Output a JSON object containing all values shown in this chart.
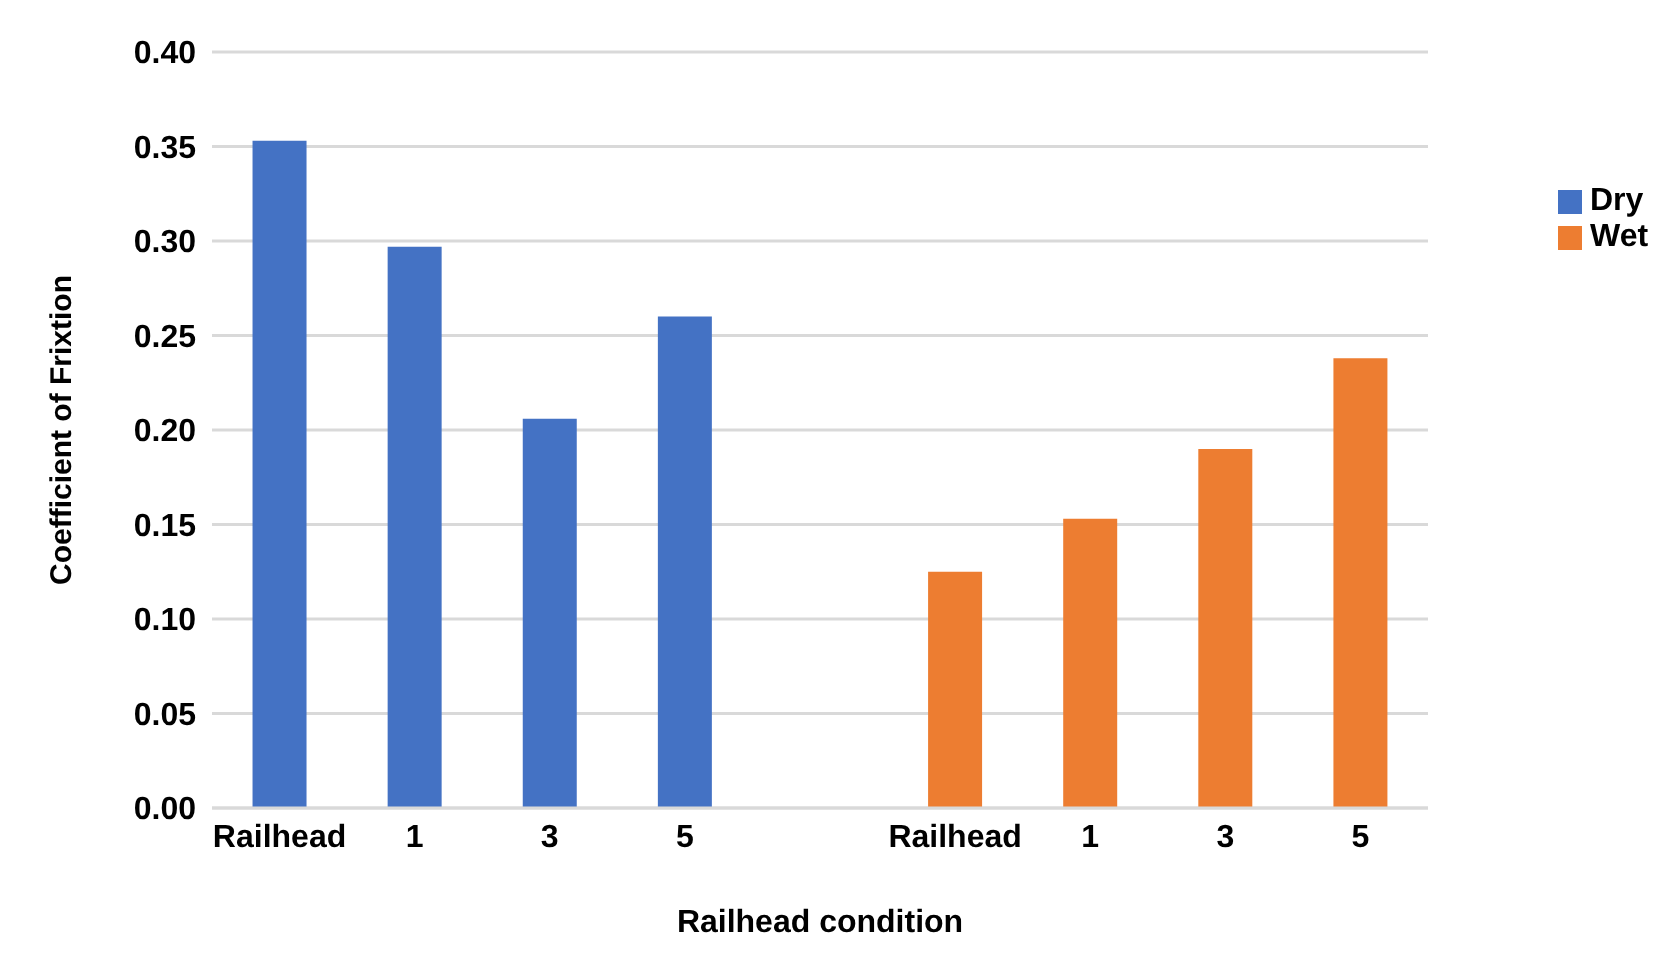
{
  "chart_data": {
    "type": "bar",
    "xlabel": "Railhead condition",
    "ylabel": "Coefficient of Frixtion",
    "categories": [
      "Railhead",
      "1",
      "3",
      "5",
      null,
      "Railhead",
      "1",
      "3",
      "5"
    ],
    "series": [
      {
        "name": "Dry",
        "color": "#4472c4",
        "values": [
          0.353,
          0.297,
          0.206,
          0.26,
          null,
          null,
          null,
          null,
          null
        ]
      },
      {
        "name": "Wet",
        "color": "#ed7d31",
        "values": [
          null,
          null,
          null,
          null,
          null,
          0.125,
          0.153,
          0.19,
          0.238
        ]
      }
    ],
    "ylim": [
      0,
      0.4
    ],
    "yticks": [
      {
        "value": 0,
        "label": "0.00"
      },
      {
        "value": 0.05,
        "label": "0.05"
      },
      {
        "value": 0.1,
        "label": "0.10"
      },
      {
        "value": 0.15,
        "label": "0.15"
      },
      {
        "value": 0.2,
        "label": "0.20"
      },
      {
        "value": 0.25,
        "label": "0.25"
      },
      {
        "value": 0.3,
        "label": "0.30"
      },
      {
        "value": 0.35,
        "label": "0.35"
      },
      {
        "value": 0.4,
        "label": "0.40"
      }
    ],
    "grid": "y",
    "legend": "right"
  }
}
